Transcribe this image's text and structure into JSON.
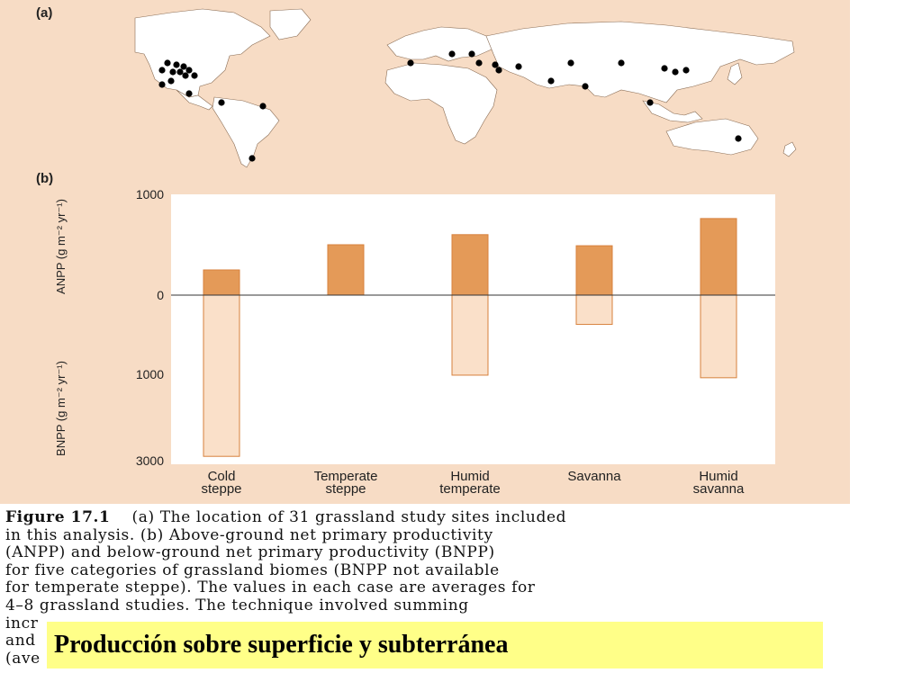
{
  "map": {
    "panel_label": "(a)",
    "site_count": 31
  },
  "chart_data": {
    "type": "bar",
    "panel_label": "(b)",
    "categories": [
      "Cold\nsteppe",
      "Temperate\nsteppe",
      "Humid\ntemperate",
      "Savanna",
      "Humid\nsavanna"
    ],
    "series": [
      {
        "name": "ANPP",
        "values": [
          250,
          500,
          600,
          490,
          760
        ],
        "color": "#e49a58"
      },
      {
        "name": "BNPP",
        "values": [
          2900,
          null,
          1020,
          370,
          1080
        ],
        "color": "#fae0c9"
      }
    ],
    "anpp_axis": {
      "label": "ANPP (g m⁻² yr⁻¹)",
      "ticks": [
        "1000",
        "0"
      ],
      "range": [
        0,
        1000
      ]
    },
    "bnpp_axis": {
      "label": "BNPP (g m⁻² yr⁻¹)",
      "ticks": [
        "1000",
        "3000"
      ],
      "range": [
        0,
        3000
      ]
    },
    "grid": false,
    "legend": "none"
  },
  "caption": {
    "figure_number": "Figure 17.1",
    "lines": [
      "(a) The location of 31 grassland study sites included",
      "in this analysis. (b) Above-ground net primary productivity",
      "(ANPP) and below-ground net primary productivity (BNPP)",
      "for five categories of grassland biomes (BNPP not available",
      "for temperate steppe). The values in each case are averages for",
      "4–8 grassland studies. The technique involved summing",
      "incr",
      "and",
      "(ave"
    ]
  },
  "overlay": {
    "text": "Producción sobre superficie y subterránea",
    "color": "#ffff88"
  },
  "colors": {
    "panel_bg": "#f7dcc5",
    "land": "#ffffff",
    "plot_bg": "#ffffff",
    "anpp": "#e49a58",
    "bnpp": "#fae0c9",
    "bar_edge": "#d7813c"
  }
}
